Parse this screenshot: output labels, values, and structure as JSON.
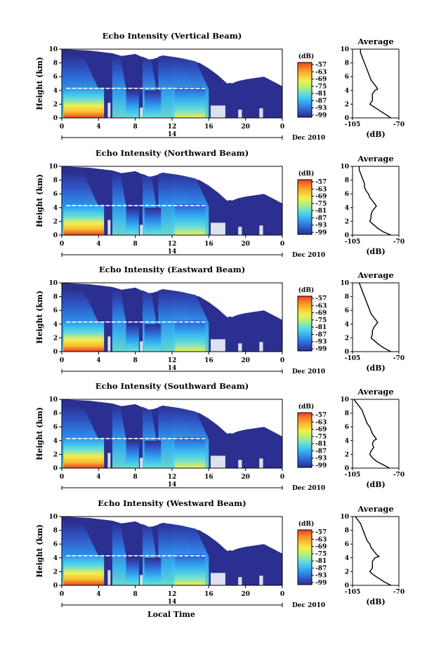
{
  "chart_data": {
    "type": "heatmap",
    "panels": [
      {
        "title": "Echo Intensity (Vertical Beam)",
        "profile": [
          [
            10,
            -99
          ],
          [
            9.5,
            -99
          ],
          [
            9,
            -98
          ],
          [
            8.5,
            -97
          ],
          [
            8,
            -96
          ],
          [
            7.5,
            -95
          ],
          [
            7,
            -94
          ],
          [
            6.5,
            -93
          ],
          [
            6,
            -92
          ],
          [
            5.5,
            -91
          ],
          [
            5,
            -89
          ],
          [
            4.5,
            -87
          ],
          [
            4.2,
            -86
          ],
          [
            4,
            -88
          ],
          [
            3.5,
            -90
          ],
          [
            3,
            -90
          ],
          [
            2.5,
            -90
          ],
          [
            2,
            -92
          ],
          [
            1.5,
            -88
          ],
          [
            1,
            -84
          ],
          [
            0.5,
            -80
          ],
          [
            0,
            -76
          ]
        ]
      },
      {
        "title": "Echo Intensity (Northward Beam)",
        "profile": [
          [
            10,
            -100
          ],
          [
            9.5,
            -100
          ],
          [
            9,
            -99
          ],
          [
            8.5,
            -98
          ],
          [
            8,
            -97
          ],
          [
            7.5,
            -96
          ],
          [
            7,
            -96
          ],
          [
            6.5,
            -95
          ],
          [
            6,
            -93
          ],
          [
            5.5,
            -92
          ],
          [
            5,
            -90
          ],
          [
            4.5,
            -88
          ],
          [
            4.2,
            -87
          ],
          [
            4,
            -88
          ],
          [
            3.5,
            -90
          ],
          [
            3,
            -91
          ],
          [
            2.5,
            -91
          ],
          [
            2,
            -92
          ],
          [
            1.5,
            -89
          ],
          [
            1,
            -86
          ],
          [
            0.5,
            -82
          ],
          [
            0,
            -76
          ]
        ]
      },
      {
        "title": "Echo Intensity (Eastward Beam)",
        "profile": [
          [
            10,
            -100
          ],
          [
            9.5,
            -99
          ],
          [
            9,
            -98
          ],
          [
            8.5,
            -97
          ],
          [
            8,
            -96
          ],
          [
            7.5,
            -95
          ],
          [
            7,
            -94
          ],
          [
            6.5,
            -93
          ],
          [
            6,
            -92
          ],
          [
            5.5,
            -91
          ],
          [
            5,
            -89
          ],
          [
            4.5,
            -87
          ],
          [
            4.2,
            -86
          ],
          [
            4,
            -87
          ],
          [
            3.5,
            -89
          ],
          [
            3,
            -90
          ],
          [
            2.5,
            -90
          ],
          [
            2,
            -91
          ],
          [
            1.5,
            -88
          ],
          [
            1,
            -85
          ],
          [
            0.5,
            -81
          ],
          [
            0,
            -76
          ]
        ]
      },
      {
        "title": "Echo Intensity (Southward Beam)",
        "profile": [
          [
            10,
            -104
          ],
          [
            9.5,
            -102
          ],
          [
            9,
            -100
          ],
          [
            8.5,
            -98
          ],
          [
            8,
            -97
          ],
          [
            7.5,
            -96
          ],
          [
            7,
            -95
          ],
          [
            6.5,
            -94
          ],
          [
            6,
            -92
          ],
          [
            5.5,
            -91
          ],
          [
            5,
            -90
          ],
          [
            4.5,
            -88
          ],
          [
            4.2,
            -87
          ],
          [
            4,
            -89
          ],
          [
            3.5,
            -90
          ],
          [
            3,
            -89
          ],
          [
            2.5,
            -91
          ],
          [
            2,
            -92
          ],
          [
            1.5,
            -90
          ],
          [
            1,
            -87
          ],
          [
            0.5,
            -82
          ],
          [
            0,
            -77
          ]
        ]
      },
      {
        "title": "Echo Intensity (Westward Beam)",
        "profile": [
          [
            10,
            -103
          ],
          [
            9.5,
            -101
          ],
          [
            9,
            -99
          ],
          [
            8.5,
            -98
          ],
          [
            8,
            -97
          ],
          [
            7.5,
            -96
          ],
          [
            7,
            -95
          ],
          [
            6.5,
            -94
          ],
          [
            6,
            -92
          ],
          [
            5.5,
            -91
          ],
          [
            5,
            -89
          ],
          [
            4.5,
            -87
          ],
          [
            4.2,
            -85
          ],
          [
            4,
            -88
          ],
          [
            3.5,
            -90
          ],
          [
            3,
            -90
          ],
          [
            2.5,
            -90
          ],
          [
            2,
            -92
          ],
          [
            1.5,
            -89
          ],
          [
            1,
            -85
          ],
          [
            0.5,
            -81
          ],
          [
            0,
            -76
          ]
        ]
      }
    ],
    "ylabel": "Height (km)",
    "ylim": [
      0,
      10
    ],
    "yticks": [
      "0",
      "2",
      "4",
      "6",
      "8",
      "10"
    ],
    "xlim": [
      0,
      24
    ],
    "xticks": [
      "0",
      "4",
      "8",
      "12",
      "16",
      "20",
      "0"
    ],
    "date_day": "14",
    "date_month": "Dec 2010",
    "xlabel": "Local Time",
    "colorbar": {
      "label": "(dB)",
      "ticks": [
        "-57",
        "-63",
        "-69",
        "-75",
        "-81",
        "-87",
        "-93",
        "-99"
      ],
      "range": [
        -99,
        -57
      ],
      "colors": [
        "#2b2f8f",
        "#2f58c8",
        "#2f8fe8",
        "#3ec0f0",
        "#6fe0d0",
        "#b8f070",
        "#f0f050",
        "#f8c030",
        "#f88828",
        "#e84020"
      ]
    },
    "profile_title": "Average",
    "profile_xlabel": "(dB)",
    "profile_xticks": [
      "-105",
      "-70"
    ],
    "profile_xlim": [
      -105,
      -70
    ]
  }
}
